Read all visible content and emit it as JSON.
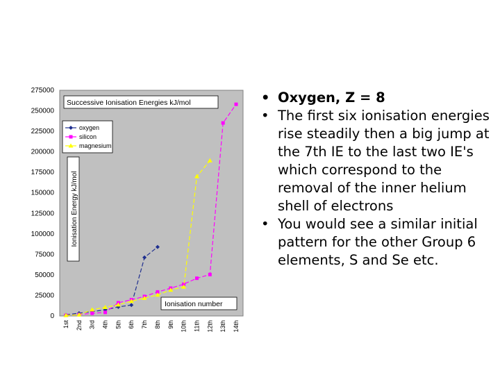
{
  "chart_data": {
    "type": "line",
    "title": "Successive Ionisation Energies kJ/mol",
    "xlabel": "Ionisation number",
    "ylabel": "Ionisation Energy kJ/mol",
    "ylim": [
      0,
      275000
    ],
    "yticks": [
      "0",
      "25000",
      "50000",
      "75000",
      "100000",
      "125000",
      "150000",
      "175000",
      "200000",
      "225000",
      "250000",
      "275000"
    ],
    "categories": [
      "1st",
      "2nd",
      "3rd",
      "4th",
      "5th",
      "6th",
      "7th",
      "8th",
      "9th",
      "10th",
      "11th",
      "12th",
      "13th",
      "14th"
    ],
    "grid": false,
    "legend_position": "top-left",
    "series": [
      {
        "name": "oxygen",
        "color": "#1f2f8f",
        "marker": "diamond",
        "values": [
          1314,
          3388,
          5301,
          7469,
          10989,
          13327,
          71337,
          84078,
          null,
          null,
          null,
          null,
          null,
          null
        ]
      },
      {
        "name": "silicon",
        "color": "#ff00ff",
        "marker": "square",
        "values": [
          786,
          1577,
          3232,
          4356,
          16091,
          19805,
          23780,
          29287,
          33878,
          38726,
          45962,
          50502,
          235196,
          257923
        ]
      },
      {
        "name": "magnesium",
        "color": "#ffff00",
        "marker": "triangle",
        "values": [
          738,
          1451,
          7733,
          10543,
          13630,
          18020,
          21711,
          25661,
          31653,
          35458,
          169988,
          189368,
          null,
          null
        ]
      }
    ]
  },
  "bullets": [
    "Oxygen, Z = 8",
    "The first six ionisation energies rise steadily then a big jump at the 7th IE to the last two IE's which correspond to the removal of the inner helium shell of electrons",
    "You would see a similar initial pattern for the other Group 6 elements, S and Se etc."
  ]
}
